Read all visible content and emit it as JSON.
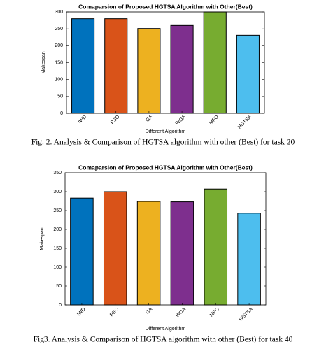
{
  "chart_data": [
    {
      "type": "bar",
      "title": "Comaparsion of Proposed HGTSA Algorithm with Other(Best)",
      "x_label": "Different Algorithm",
      "y_label": "Makespan",
      "categories": [
        "IWD",
        "PSO",
        "GA",
        "WOA",
        "MFO",
        "HGTSA"
      ],
      "values": [
        280,
        280,
        251,
        260,
        300,
        231
      ],
      "colors": [
        "#0072bd",
        "#d95319",
        "#edb120",
        "#7e2f8e",
        "#77ac30",
        "#4dbeee"
      ],
      "ylim": [
        0,
        300
      ],
      "yticks": [
        0,
        50,
        100,
        150,
        200,
        250,
        300
      ],
      "caption": "Fig. 2. Analysis & Comparison of HGTSA algorithm with other (Best) for task 20"
    },
    {
      "type": "bar",
      "title": "Comaparsion of Proposed HGTSA Algorithm with Other(Best)",
      "x_label": "Different Algorithm",
      "y_label": "Makespan",
      "categories": [
        "IWD",
        "PSO",
        "GA",
        "WOA",
        "MFO",
        "HGTSA"
      ],
      "values": [
        283,
        300,
        274,
        273,
        307,
        243
      ],
      "colors": [
        "#0072bd",
        "#d95319",
        "#edb120",
        "#7e2f8e",
        "#77ac30",
        "#4dbeee"
      ],
      "ylim": [
        0,
        350
      ],
      "yticks": [
        0,
        50,
        100,
        150,
        200,
        250,
        300,
        350
      ],
      "caption": "Fig3. Analysis & Comparison of HGTSA algorithm with other (Best) for task 40"
    }
  ]
}
